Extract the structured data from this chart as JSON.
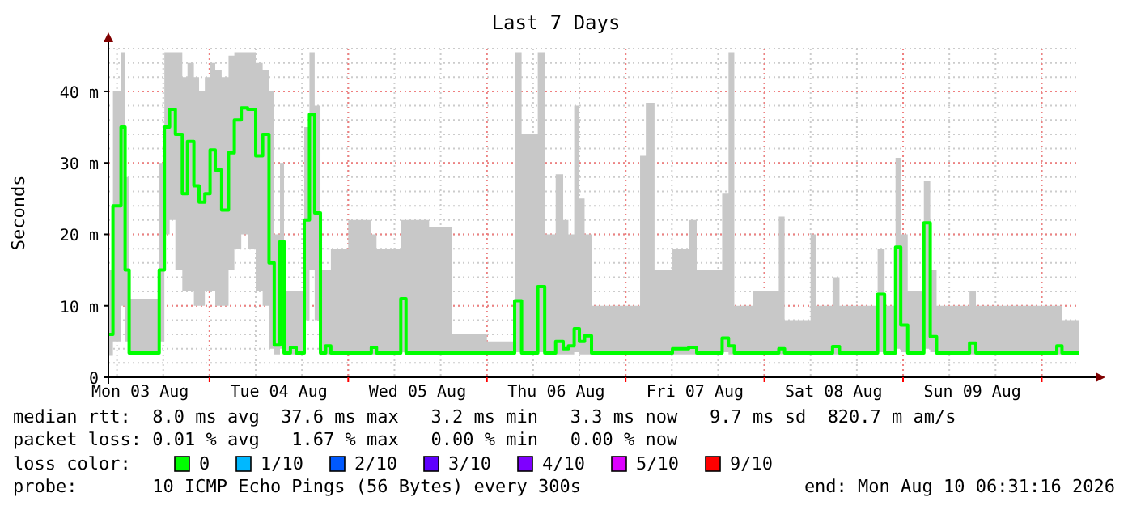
{
  "chart_data": {
    "type": "step",
    "title": "Last 7 Days",
    "ylabel": "Seconds",
    "x": [
      "2026-08-03T06:31",
      "2026-08-03T07:18",
      "2026-08-03T08:42",
      "2026-08-03T09:24",
      "2026-08-03T10:06",
      "2026-08-03T15:18",
      "2026-08-03T16:12",
      "2026-08-03T17:06",
      "2026-08-03T18:06",
      "2026-08-03T19:18",
      "2026-08-03T20:12",
      "2026-08-03T21:18",
      "2026-08-03T22:12",
      "2026-08-03T23:12",
      "2026-08-04T00:06",
      "2026-08-04T01:00",
      "2026-08-04T02:06",
      "2026-08-04T03:18",
      "2026-08-04T04:18",
      "2026-08-04T05:30",
      "2026-08-04T06:36",
      "2026-08-04T08:00",
      "2026-08-04T09:12",
      "2026-08-04T10:18",
      "2026-08-04T11:12",
      "2026-08-04T12:12",
      "2026-08-04T12:54",
      "2026-08-04T14:00",
      "2026-08-04T15:00",
      "2026-08-04T16:24",
      "2026-08-04T17:18",
      "2026-08-04T18:12",
      "2026-08-04T19:12",
      "2026-08-04T20:06",
      "2026-08-04T21:00",
      "2026-08-05T00:00",
      "2026-08-05T04:00",
      "2026-08-05T04:54",
      "2026-08-05T09:06",
      "2026-08-05T10:00",
      "2026-08-05T14:00",
      "2026-08-05T18:00",
      "2026-08-06T00:00",
      "2026-08-06T04:48",
      "2026-08-06T06:00",
      "2026-08-06T08:48",
      "2026-08-06T10:00",
      "2026-08-06T11:54",
      "2026-08-06T13:12",
      "2026-08-06T14:06",
      "2026-08-06T15:06",
      "2026-08-06T16:00",
      "2026-08-06T16:54",
      "2026-08-06T18:06",
      "2026-08-06T23:00",
      "2026-08-07T02:30",
      "2026-08-07T03:30",
      "2026-08-07T05:00",
      "2026-08-07T08:06",
      "2026-08-07T10:54",
      "2026-08-07T12:18",
      "2026-08-07T16:42",
      "2026-08-07T17:48",
      "2026-08-07T18:48",
      "2026-08-07T22:00",
      "2026-08-08T02:30",
      "2026-08-08T03:30",
      "2026-08-08T08:00",
      "2026-08-08T09:00",
      "2026-08-08T11:48",
      "2026-08-08T13:00",
      "2026-08-08T19:36",
      "2026-08-08T20:48",
      "2026-08-08T22:42",
      "2026-08-08T23:36",
      "2026-08-09T00:48",
      "2026-08-09T03:36",
      "2026-08-09T04:42",
      "2026-08-09T05:48",
      "2026-08-09T11:30",
      "2026-08-09T12:36",
      "2026-08-10T02:36",
      "2026-08-10T03:30",
      "2026-08-10T06:30"
    ],
    "series": [
      {
        "color": "#00ff00",
        "values": [
          6,
          24,
          35,
          15,
          3.4,
          15,
          35,
          37.5,
          34,
          25.7,
          33,
          26.8,
          24.5,
          25.7,
          31.8,
          29,
          23.4,
          31.4,
          36,
          37.7,
          37.5,
          31,
          34,
          16,
          4.5,
          19,
          3.4,
          4.2,
          3.4,
          22,
          36.8,
          23,
          3.4,
          4.4,
          3.4,
          3.4,
          4.2,
          3.4,
          11,
          3.4,
          3.4,
          3.4,
          3.4,
          10.7,
          3.4,
          12.7,
          3.4,
          5,
          4,
          4.4,
          6.8,
          5,
          5.8,
          3.4,
          3.4,
          3.4,
          3.4,
          3.4,
          4,
          4.2,
          3.4,
          5.5,
          4.4,
          3.4,
          3.4,
          4,
          3.4,
          3.4,
          3.4,
          4.3,
          3.4,
          11.6,
          3.4,
          18.2,
          7.3,
          3.4,
          21.6,
          5.7,
          3.4,
          4.8,
          3.4,
          4.4,
          3.4,
          3.4
        ],
        "lower": [
          3,
          5,
          10,
          5,
          3.2,
          5,
          20,
          22,
          15,
          12,
          12,
          10,
          10,
          12,
          12,
          10,
          10,
          15,
          18,
          20,
          18,
          12,
          10,
          4,
          3.2,
          4,
          3.2,
          3.2,
          3.2,
          8,
          15,
          8,
          3.2,
          3.2,
          3.2,
          3.2,
          3.2,
          3.2,
          3.5,
          3.2,
          3.2,
          3.2,
          3.2,
          3.5,
          3.2,
          3.5,
          3.2,
          3.2,
          3.2,
          3.2,
          3.5,
          3.2,
          3.2,
          3.2,
          3.2,
          3.2,
          3.2,
          3.2,
          3.2,
          3.2,
          3.2,
          3.5,
          3.2,
          3.2,
          3.2,
          3.2,
          3.2,
          3.2,
          3.2,
          3.2,
          3.2,
          3.5,
          3.2,
          4,
          3.5,
          3.2,
          4,
          3.5,
          3.2,
          3.2,
          3.2,
          3.2,
          3.2,
          3.2
        ],
        "upper": [
          15,
          40,
          45.5,
          28,
          11,
          30,
          45.5,
          45.5,
          45.5,
          42,
          44,
          42,
          40,
          42,
          44,
          43,
          42,
          45,
          45.5,
          45.5,
          45.5,
          44,
          43,
          40,
          20,
          30,
          12,
          12,
          12,
          35,
          45.5,
          38,
          15,
          15,
          18,
          22,
          20,
          18,
          22,
          22,
          21,
          6,
          5,
          45.5,
          34,
          45.5,
          20,
          28.4,
          22,
          20,
          38,
          25,
          20,
          10,
          10,
          31,
          38.4,
          15,
          18,
          22,
          15,
          25.7,
          45.5,
          10,
          12,
          22.5,
          8,
          20,
          10,
          14,
          10,
          18,
          10,
          30.7,
          20,
          12,
          27.5,
          15,
          10,
          12,
          10,
          10,
          8,
          8
        ]
      }
    ],
    "xlim": [
      "2026-08-03T06:31",
      "2026-08-10T06:31"
    ],
    "xticks": [
      {
        "value": "2026-08-03T12:00",
        "label": "Mon 03 Aug"
      },
      {
        "value": "2026-08-04T00:00",
        "label": null
      },
      {
        "value": "2026-08-04T12:00",
        "label": "Tue 04 Aug"
      },
      {
        "value": "2026-08-05T00:00",
        "label": null
      },
      {
        "value": "2026-08-05T12:00",
        "label": "Wed 05 Aug"
      },
      {
        "value": "2026-08-06T00:00",
        "label": null
      },
      {
        "value": "2026-08-06T12:00",
        "label": "Thu 06 Aug"
      },
      {
        "value": "2026-08-07T00:00",
        "label": null
      },
      {
        "value": "2026-08-07T12:00",
        "label": "Fri 07 Aug"
      },
      {
        "value": "2026-08-08T00:00",
        "label": null
      },
      {
        "value": "2026-08-08T12:00",
        "label": "Sat 08 Aug"
      },
      {
        "value": "2026-08-09T00:00",
        "label": null
      },
      {
        "value": "2026-08-09T12:00",
        "label": "Sun 09 Aug"
      },
      {
        "value": "2026-08-10T00:00",
        "label": null
      }
    ],
    "ylim": [
      0,
      46
    ],
    "yticks": [
      0,
      {
        "value": 10,
        "label": "10 m"
      },
      {
        "value": 20,
        "label": "20 m"
      },
      {
        "value": 30,
        "label": "30 m"
      },
      {
        "value": 40,
        "label": "40 m"
      }
    ],
    "grid": true,
    "annotations": [
      "median rtt:  8.0 ms avg  37.6 ms max   3.2 ms min   3.3 ms now   9.7 ms sd  820.7 m am/s",
      "packet loss: 0.01 % avg   1.67 % max   0.00 % min   0.00 % now",
      "loss color:",
      "0",
      "1/10",
      "2/10",
      "3/10",
      "4/10",
      "5/10",
      "9/10",
      "probe:       10 ICMP Echo Pings (56 Bytes) every 300s",
      "end: Mon Aug 10 06:31:16 2026"
    ]
  }
}
